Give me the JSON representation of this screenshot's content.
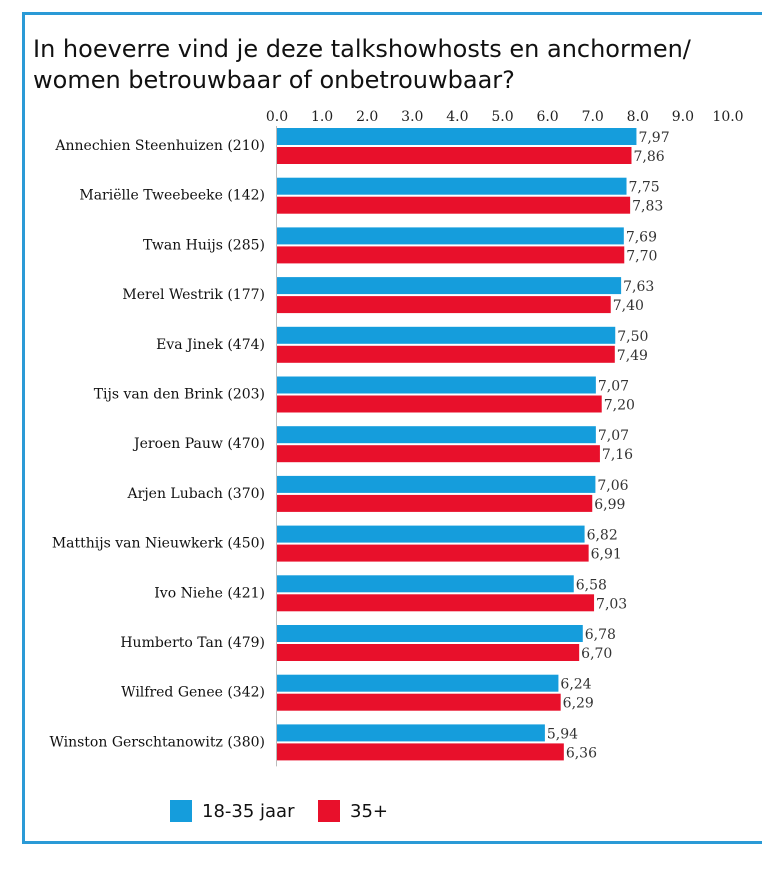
{
  "chart_data": {
    "type": "bar",
    "orientation": "horizontal",
    "title": "In hoeverre vind je deze talkshowhosts en anchormen/ women betrouwbaar of onbetrouwbaar?",
    "xlim": [
      0,
      10
    ],
    "x_ticks": [
      "0.0",
      "1.0",
      "2.0",
      "3.0",
      "4.0",
      "5.0",
      "6.0",
      "7.0",
      "8.0",
      "9.0",
      "10.0"
    ],
    "categories": [
      "Annechien Steenhuizen (210)",
      "Mariëlle Tweebeeke (142)",
      "Twan Huijs (285)",
      "Merel Westrik (177)",
      "Eva Jinek (474)",
      "Tijs van den Brink (203)",
      "Jeroen Pauw (470)",
      "Arjen Lubach (370)",
      "Matthijs van Nieuwkerk (450)",
      "Ivo Niehe (421)",
      "Humberto Tan (479)",
      "Wilfred Genee (342)",
      "Winston Gerschtanowitz (380)"
    ],
    "series": [
      {
        "name": "18-35 jaar",
        "color": "#159ddc",
        "values": [
          7.97,
          7.75,
          7.69,
          7.63,
          7.5,
          7.07,
          7.07,
          7.06,
          6.82,
          6.58,
          6.78,
          6.24,
          5.94
        ],
        "labels": [
          "7,97",
          "7,75",
          "7,69",
          "7,63",
          "7,50",
          "7,07",
          "7,07",
          "7,06",
          "6,82",
          "6,58",
          "6,78",
          "6,24",
          "5,94"
        ]
      },
      {
        "name": "35+",
        "color": "#e8102b",
        "values": [
          7.86,
          7.83,
          7.7,
          7.4,
          7.49,
          7.2,
          7.16,
          6.99,
          6.91,
          7.03,
          6.7,
          6.29,
          6.36
        ],
        "labels": [
          "7,86",
          "7,83",
          "7,70",
          "7,40",
          "7,49",
          "7,20",
          "7,16",
          "6,99",
          "6,91",
          "7,03",
          "6,70",
          "6,29",
          "6,36"
        ]
      }
    ],
    "legend_position": "bottom-left",
    "grid": false
  }
}
